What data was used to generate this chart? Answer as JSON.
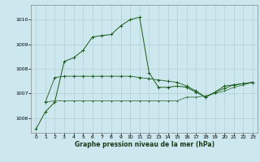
{
  "title": "Graphe pression niveau de la mer (hPa)",
  "background_color": "#cce8ee",
  "grid_color": "#aac8d0",
  "line_color": "#1a5c1a",
  "xlim": [
    -0.5,
    23.5
  ],
  "ylim": [
    1005.4,
    1010.6
  ],
  "yticks": [
    1006,
    1007,
    1008,
    1009,
    1010
  ],
  "xticks": [
    0,
    1,
    2,
    3,
    4,
    5,
    6,
    7,
    8,
    9,
    10,
    11,
    12,
    13,
    14,
    15,
    16,
    17,
    18,
    19,
    20,
    21,
    22,
    23
  ],
  "series1_x": [
    0,
    1,
    2,
    3,
    4,
    5,
    6,
    7,
    8,
    9,
    10,
    11,
    12,
    13,
    14,
    15,
    16,
    17,
    18,
    19,
    20,
    21,
    22,
    23
  ],
  "series1_y": [
    1005.55,
    1006.25,
    1006.65,
    1008.3,
    1008.45,
    1008.75,
    1009.3,
    1009.35,
    1009.4,
    1009.75,
    1010.0,
    1010.1,
    1007.85,
    1007.25,
    1007.25,
    1007.3,
    1007.25,
    1007.05,
    1006.85,
    1007.05,
    1007.3,
    1007.35,
    1007.4,
    1007.45
  ],
  "series2_x": [
    1,
    2,
    3,
    4,
    5,
    6,
    7,
    8,
    9,
    10,
    11,
    12,
    13,
    14,
    15,
    16,
    17,
    18,
    19,
    20,
    21,
    22,
    23
  ],
  "series2_y": [
    1006.65,
    1007.65,
    1007.7,
    1007.7,
    1007.7,
    1007.7,
    1007.7,
    1007.7,
    1007.7,
    1007.7,
    1007.65,
    1007.6,
    1007.55,
    1007.5,
    1007.45,
    1007.3,
    1007.1,
    1006.85,
    1007.05,
    1007.2,
    1007.35,
    1007.4,
    1007.45
  ],
  "series3_x": [
    1,
    2,
    3,
    4,
    5,
    6,
    7,
    8,
    9,
    10,
    11,
    12,
    13,
    14,
    15,
    16,
    17,
    18,
    19,
    20,
    21,
    22,
    23
  ],
  "series3_y": [
    1006.65,
    1006.7,
    1006.7,
    1006.7,
    1006.7,
    1006.7,
    1006.7,
    1006.7,
    1006.7,
    1006.7,
    1006.7,
    1006.7,
    1006.7,
    1006.7,
    1006.7,
    1006.85,
    1006.85,
    1006.9,
    1007.0,
    1007.1,
    1007.25,
    1007.35,
    1007.45
  ]
}
